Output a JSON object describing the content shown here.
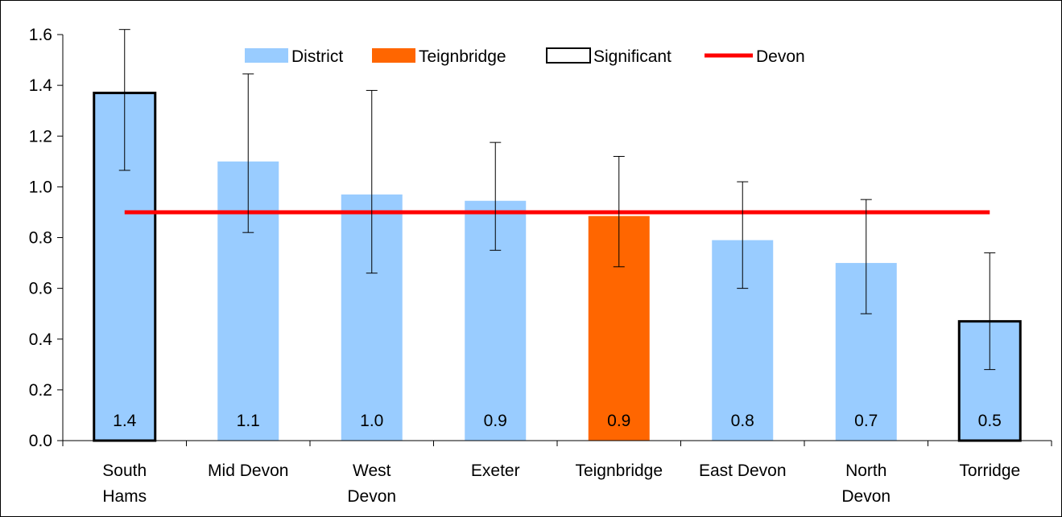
{
  "chart_data": {
    "type": "bar",
    "categories": [
      [
        "South",
        "Hams"
      ],
      [
        "Mid Devon"
      ],
      [
        "West",
        "Devon"
      ],
      [
        "Exeter"
      ],
      [
        "Teignbridge"
      ],
      [
        "East Devon"
      ],
      [
        "North",
        "Devon"
      ],
      [
        "Torridge"
      ]
    ],
    "values": [
      1.37,
      1.1,
      0.97,
      0.945,
      0.885,
      0.79,
      0.7,
      0.47
    ],
    "value_labels": [
      "1.4",
      "1.1",
      "1.0",
      "0.9",
      "0.9",
      "0.8",
      "0.7",
      "0.5"
    ],
    "ci_low": [
      1.065,
      0.82,
      0.66,
      0.75,
      0.685,
      0.6,
      0.5,
      0.28
    ],
    "ci_high": [
      1.62,
      1.445,
      1.38,
      1.175,
      1.12,
      1.02,
      0.95,
      0.74
    ],
    "bar_role": [
      "significant",
      "district",
      "district",
      "district",
      "teignbridge",
      "district",
      "district",
      "significant"
    ],
    "reference_line": {
      "name": "Devon",
      "value": 0.9
    },
    "ylim": [
      0,
      1.6
    ],
    "yticks": [
      "0.0",
      "0.2",
      "0.4",
      "0.6",
      "0.8",
      "1.0",
      "1.2",
      "1.4",
      "1.6"
    ],
    "ytick_values": [
      0,
      0.2,
      0.4,
      0.6,
      0.8,
      1.0,
      1.2,
      1.4,
      1.6
    ],
    "legend": {
      "placement": "top",
      "entries": [
        {
          "label": "District",
          "kind": "district"
        },
        {
          "label": "Teignbridge",
          "kind": "teignbridge"
        },
        {
          "label": "Significant",
          "kind": "significant"
        },
        {
          "label": "Devon",
          "kind": "line"
        }
      ]
    },
    "colors": {
      "district": "#99ccff",
      "teignbridge": "#ff6600",
      "line": "#ff0000",
      "significant_edge": "#000000"
    },
    "grid": false,
    "title": "",
    "xlabel": "",
    "ylabel": ""
  }
}
